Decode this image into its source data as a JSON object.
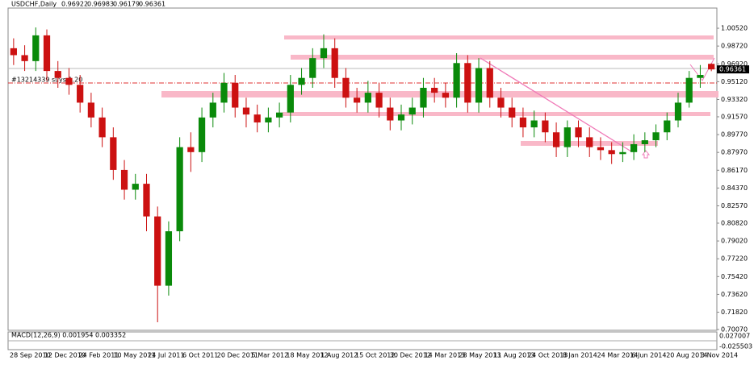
{
  "chart_data": {
    "type": "candlestick",
    "symbol": "USDCHF,Daily",
    "order_label": "#13214339 sl/ys 1.20",
    "macd_title": "MACD(12,26,9) 0.001954 0.003352",
    "macd_ticks": [
      "0.027007",
      "-0.025503"
    ],
    "bull_color": "#0a8a0a",
    "bear_color": "#cc1111",
    "xticks": [
      "28 Sep 2010",
      "12 Dec 2010",
      "24 Feb 2011",
      "10 May 2011",
      "24 Jul 2011",
      "6 Oct 2011",
      "20 Dec 2011",
      "5 Mar 2012",
      "18 May 2012",
      "1 Aug 2012",
      "15 Oct 2012",
      "30 Dec 2012",
      "14 Mar 2013",
      "28 May 2013",
      "11 Aug 2013",
      "24 Oct 2013",
      "8 Jan 2014",
      "24 Mar 2014",
      "6 Jun 2014",
      "20 Aug 2014",
      "3 Nov 2014"
    ],
    "ylim": [
      0.6999,
      1.0256
    ],
    "yticks": [
      {
        "value": 1.0052,
        "label": "1.00520"
      },
      {
        "value": 0.9872,
        "label": "0.98720"
      },
      {
        "value": 0.9692,
        "label": "0.96920"
      },
      {
        "value": 0.9512,
        "label": "0.95120"
      },
      {
        "value": 0.9332,
        "label": "0.93320"
      },
      {
        "value": 0.9157,
        "label": "0.91570"
      },
      {
        "value": 0.8977,
        "label": "0.89770"
      },
      {
        "value": 0.8797,
        "label": "0.87970"
      },
      {
        "value": 0.8617,
        "label": "0.86170"
      },
      {
        "value": 0.8437,
        "label": "0.84370"
      },
      {
        "value": 0.8257,
        "label": "0.82570"
      },
      {
        "value": 0.8082,
        "label": "0.80820"
      },
      {
        "value": 0.7902,
        "label": "0.79020"
      },
      {
        "value": 0.7722,
        "label": "0.77220"
      },
      {
        "value": 0.7542,
        "label": "0.75420"
      },
      {
        "value": 0.7362,
        "label": "0.73620"
      },
      {
        "value": 0.7182,
        "label": "0.71820"
      },
      {
        "value": 0.7007,
        "label": "0.70070"
      }
    ],
    "open": [
      0.985,
      0.978,
      0.972,
      0.998,
      0.962,
      0.955,
      0.948,
      0.93,
      0.915,
      0.895,
      0.862,
      0.842,
      0.848,
      0.815,
      0.745,
      0.8,
      0.885,
      0.88,
      0.915,
      0.93,
      0.95,
      0.925,
      0.918,
      0.91,
      0.915,
      0.92,
      0.948,
      0.955,
      0.975,
      0.985,
      0.955,
      0.935,
      0.93,
      0.94,
      0.925,
      0.912,
      0.918,
      0.925,
      0.945,
      0.94,
      0.935,
      0.97,
      0.93,
      0.965,
      0.935,
      0.925,
      0.915,
      0.905,
      0.912,
      0.9,
      0.885,
      0.905,
      0.895,
      0.885,
      0.882,
      0.878,
      0.88,
      0.888,
      0.892,
      0.9,
      0.912,
      0.93,
      0.955,
      0.96922
    ],
    "high": [
      0.995,
      0.988,
      1.006,
      1.004,
      0.972,
      0.965,
      0.958,
      0.94,
      0.925,
      0.905,
      0.872,
      0.858,
      0.858,
      0.825,
      0.81,
      0.895,
      0.9,
      0.925,
      0.94,
      0.96,
      0.958,
      0.935,
      0.928,
      0.925,
      0.93,
      0.958,
      0.965,
      0.985,
      0.999,
      0.995,
      0.965,
      0.945,
      0.952,
      0.95,
      0.935,
      0.928,
      0.935,
      0.955,
      0.955,
      0.95,
      0.98,
      0.978,
      0.975,
      0.972,
      0.945,
      0.935,
      0.925,
      0.922,
      0.92,
      0.91,
      0.912,
      0.912,
      0.905,
      0.895,
      0.89,
      0.89,
      0.898,
      0.9,
      0.908,
      0.92,
      0.94,
      0.962,
      0.968,
      0.96983
    ],
    "low": [
      0.968,
      0.962,
      0.962,
      0.952,
      0.945,
      0.938,
      0.92,
      0.905,
      0.885,
      0.852,
      0.832,
      0.832,
      0.8,
      0.708,
      0.735,
      0.79,
      0.86,
      0.87,
      0.905,
      0.92,
      0.915,
      0.905,
      0.9,
      0.9,
      0.905,
      0.91,
      0.938,
      0.945,
      0.965,
      0.945,
      0.925,
      0.92,
      0.92,
      0.915,
      0.902,
      0.902,
      0.908,
      0.915,
      0.93,
      0.925,
      0.925,
      0.92,
      0.92,
      0.925,
      0.915,
      0.905,
      0.895,
      0.895,
      0.89,
      0.875,
      0.875,
      0.885,
      0.875,
      0.872,
      0.868,
      0.87,
      0.872,
      0.88,
      0.885,
      0.892,
      0.905,
      0.925,
      0.945,
      0.96179
    ],
    "close": [
      0.978,
      0.972,
      0.998,
      0.962,
      0.955,
      0.948,
      0.93,
      0.915,
      0.895,
      0.862,
      0.842,
      0.848,
      0.815,
      0.745,
      0.8,
      0.885,
      0.88,
      0.915,
      0.93,
      0.95,
      0.925,
      0.918,
      0.91,
      0.915,
      0.92,
      0.948,
      0.955,
      0.975,
      0.985,
      0.955,
      0.935,
      0.93,
      0.94,
      0.925,
      0.912,
      0.918,
      0.925,
      0.945,
      0.94,
      0.935,
      0.97,
      0.93,
      0.965,
      0.935,
      0.925,
      0.915,
      0.905,
      0.912,
      0.9,
      0.885,
      0.905,
      0.895,
      0.885,
      0.882,
      0.878,
      0.88,
      0.888,
      0.892,
      0.9,
      0.912,
      0.93,
      0.955,
      0.958,
      0.96361
    ]
  }
}
